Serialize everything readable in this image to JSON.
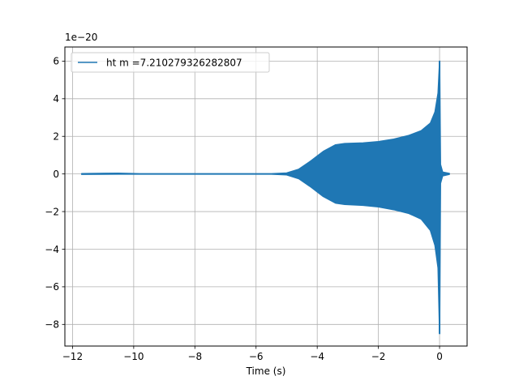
{
  "chart_data": {
    "type": "line",
    "title": "",
    "xlabel": "Time (s)",
    "ylabel": "",
    "y_offset_label": "1e−20",
    "xlim": [
      -12.25,
      0.9
    ],
    "ylim": [
      -9.15,
      6.75
    ],
    "y_scale_factor": 1e-20,
    "x_ticks": [
      -12,
      -10,
      -8,
      -6,
      -4,
      -2,
      0
    ],
    "x_tick_labels": [
      "−12",
      "−10",
      "−8",
      "−6",
      "−4",
      "−2",
      "0"
    ],
    "y_ticks": [
      -8,
      -6,
      -4,
      -2,
      0,
      2,
      4,
      6
    ],
    "y_tick_labels": [
      "−8",
      "−6",
      "−4",
      "−2",
      "0",
      "2",
      "4",
      "6"
    ],
    "grid": true,
    "legend_position": "upper-left",
    "series": [
      {
        "name": "ht m =7.210279326282807",
        "color": "#1f77b4",
        "x_range": [
          -11.7,
          0.32
        ],
        "peak": {
          "x": 0.0,
          "y_max": 6.0,
          "y_min": -8.5
        },
        "envelope_upper": [
          {
            "x": -11.7,
            "y": 0.02
          },
          {
            "x": -10.5,
            "y": 0.04
          },
          {
            "x": -9.8,
            "y": 0.01
          },
          {
            "x": -5.5,
            "y": 0.01
          },
          {
            "x": -5.0,
            "y": 0.05
          },
          {
            "x": -4.6,
            "y": 0.25
          },
          {
            "x": -4.2,
            "y": 0.7
          },
          {
            "x": -3.8,
            "y": 1.2
          },
          {
            "x": -3.4,
            "y": 1.55
          },
          {
            "x": -3.1,
            "y": 1.62
          },
          {
            "x": -2.5,
            "y": 1.65
          },
          {
            "x": -2.0,
            "y": 1.72
          },
          {
            "x": -1.5,
            "y": 1.85
          },
          {
            "x": -1.0,
            "y": 2.05
          },
          {
            "x": -0.6,
            "y": 2.3
          },
          {
            "x": -0.3,
            "y": 2.7
          },
          {
            "x": -0.15,
            "y": 3.3
          },
          {
            "x": -0.05,
            "y": 4.3
          },
          {
            "x": 0.0,
            "y": 6.0
          },
          {
            "x": 0.03,
            "y": 0.5
          },
          {
            "x": 0.1,
            "y": 0.1
          },
          {
            "x": 0.32,
            "y": 0.03
          }
        ],
        "envelope_lower": [
          {
            "x": -11.7,
            "y": -0.02
          },
          {
            "x": -10.5,
            "y": -0.01
          },
          {
            "x": -9.8,
            "y": -0.01
          },
          {
            "x": -5.5,
            "y": -0.01
          },
          {
            "x": -5.0,
            "y": -0.05
          },
          {
            "x": -4.6,
            "y": -0.25
          },
          {
            "x": -4.2,
            "y": -0.7
          },
          {
            "x": -3.8,
            "y": -1.2
          },
          {
            "x": -3.4,
            "y": -1.55
          },
          {
            "x": -3.1,
            "y": -1.62
          },
          {
            "x": -2.5,
            "y": -1.67
          },
          {
            "x": -2.0,
            "y": -1.75
          },
          {
            "x": -1.5,
            "y": -1.9
          },
          {
            "x": -1.0,
            "y": -2.1
          },
          {
            "x": -0.6,
            "y": -2.4
          },
          {
            "x": -0.3,
            "y": -3.0
          },
          {
            "x": -0.15,
            "y": -3.8
          },
          {
            "x": -0.05,
            "y": -5.0
          },
          {
            "x": 0.0,
            "y": -8.5
          },
          {
            "x": 0.03,
            "y": -0.5
          },
          {
            "x": 0.1,
            "y": -0.1
          },
          {
            "x": 0.32,
            "y": -0.02
          }
        ]
      }
    ]
  }
}
